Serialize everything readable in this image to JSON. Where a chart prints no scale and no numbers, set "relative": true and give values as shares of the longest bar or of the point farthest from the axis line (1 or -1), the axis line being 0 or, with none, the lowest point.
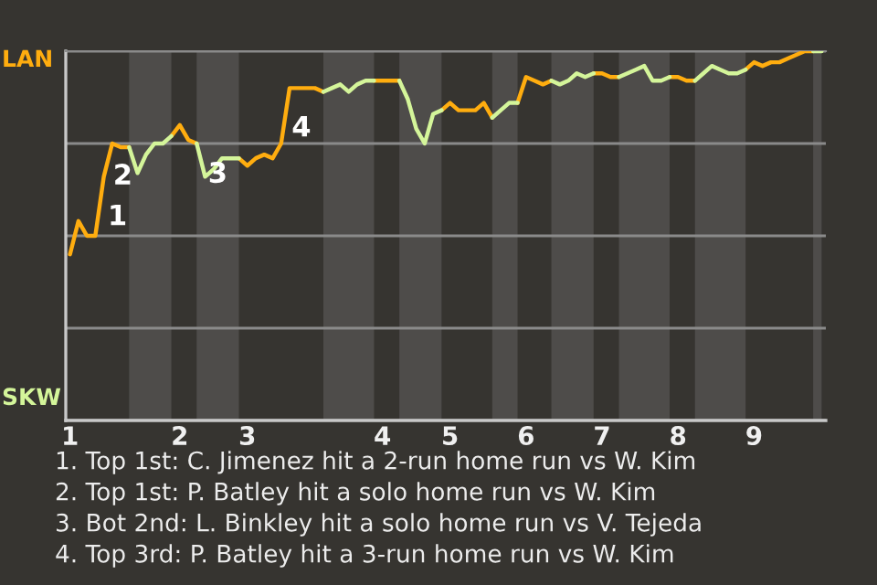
{
  "chart_data": {
    "type": "line",
    "relative": true,
    "categories": [
      "1",
      null,
      null,
      null,
      null,
      null,
      null,
      null,
      null,
      null,
      null,
      null,
      null,
      "2",
      null,
      null,
      null,
      null,
      null,
      null,
      null,
      "3",
      null,
      null,
      null,
      null,
      null,
      null,
      null,
      null,
      null,
      null,
      null,
      null,
      null,
      null,
      null,
      "4",
      null,
      null,
      null,
      null,
      null,
      null,
      null,
      "5",
      null,
      null,
      null,
      null,
      null,
      null,
      null,
      null,
      "6",
      null,
      null,
      null,
      null,
      null,
      null,
      null,
      null,
      "7",
      null,
      null,
      null,
      null,
      null,
      null,
      null,
      null,
      "8",
      null,
      null,
      null,
      null,
      null,
      null,
      null,
      null,
      "9",
      null,
      null,
      null,
      null,
      null,
      null,
      null,
      null
    ],
    "series": [
      {
        "color": "#ffad0f",
        "values": [
          0.45,
          0.54,
          0.5,
          0.5,
          0.66,
          0.75,
          0.74,
          0.74,
          null,
          null,
          null,
          null,
          0.77,
          0.8,
          0.76,
          0.75,
          null,
          null,
          null,
          null,
          0.71,
          0.69,
          0.71,
          0.72,
          0.71,
          0.75,
          0.9,
          0.9,
          0.9,
          0.9,
          0.89,
          null,
          null,
          null,
          null,
          null,
          0.92,
          0.92,
          0.92,
          0.92,
          null,
          null,
          null,
          null,
          0.84,
          0.86,
          0.84,
          0.84,
          0.84,
          0.86,
          0.82,
          null,
          null,
          0.86,
          0.93,
          0.92,
          0.91,
          0.92,
          null,
          null,
          null,
          null,
          0.94,
          0.94,
          0.93,
          0.93,
          null,
          null,
          null,
          null,
          null,
          0.93,
          0.93,
          0.92,
          0.92,
          null,
          null,
          null,
          null,
          null,
          0.95,
          0.97,
          0.96,
          0.97,
          0.97,
          0.98,
          0.99,
          1.0,
          1.0,
          null
        ]
      },
      {
        "color": "#d4f59a",
        "values": [
          null,
          null,
          null,
          null,
          null,
          null,
          null,
          0.74,
          0.67,
          0.72,
          0.75,
          0.75,
          0.77,
          null,
          null,
          0.75,
          0.66,
          0.68,
          0.71,
          0.71,
          0.71,
          null,
          null,
          null,
          null,
          null,
          null,
          null,
          null,
          null,
          0.89,
          0.9,
          0.91,
          0.89,
          0.91,
          0.92,
          0.92,
          null,
          null,
          0.92,
          0.87,
          0.79,
          0.75,
          0.83,
          0.84,
          null,
          null,
          null,
          null,
          null,
          0.82,
          0.84,
          0.86,
          0.86,
          null,
          null,
          null,
          0.92,
          0.91,
          0.92,
          0.94,
          0.93,
          0.94,
          null,
          null,
          0.93,
          0.94,
          0.95,
          0.96,
          0.92,
          0.92,
          0.93,
          null,
          null,
          0.92,
          0.94,
          0.96,
          0.95,
          0.94,
          0.94,
          0.95,
          null,
          null,
          null,
          null,
          null,
          null,
          null,
          1.0,
          1.0
        ]
      }
    ],
    "grid": "y",
    "annotations": [
      "LAN",
      "SKW",
      "1",
      "2",
      "3",
      "4",
      "1. Top 1st: C. Jimenez hit a 2-run home run vs W. Kim",
      "2. Top 1st: P. Batley hit a solo home run vs W. Kim",
      "3. Bot 2nd: L. Binkley hit a solo home run vs V. Tejeda",
      "4. Top 3rd: P. Batley hit a 3-run home run vs W. Kim"
    ]
  }
}
